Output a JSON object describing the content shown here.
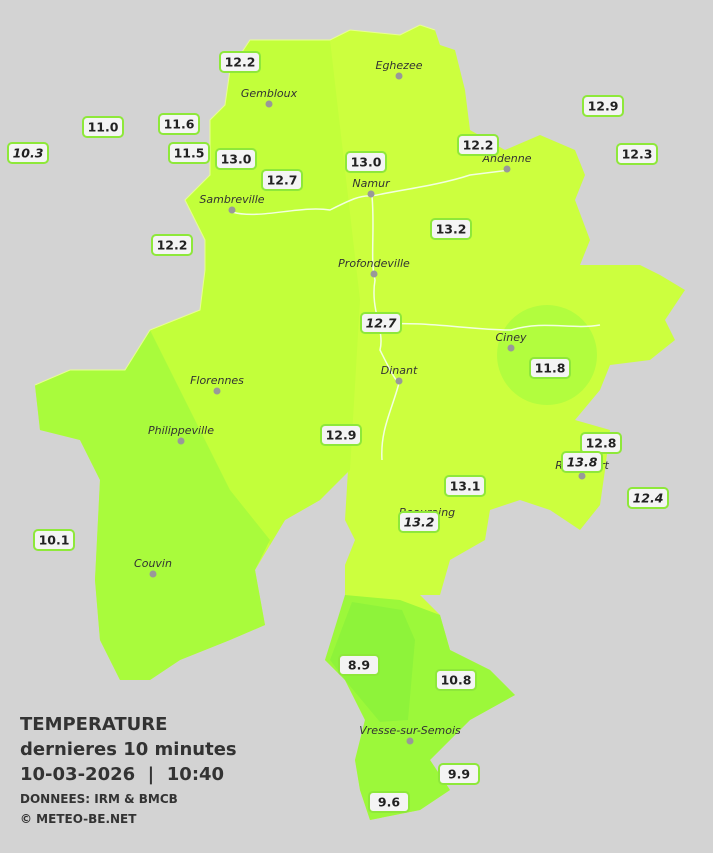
{
  "legend": {
    "title": "TEMPERATURE",
    "subtitle": "dernieres 10 minutes",
    "datetime": "10-03-2026  |  10:40",
    "source": "DONNEES: IRM & BMCB",
    "copyright": "© METEO-BE.NET"
  },
  "cities": [
    "Eghezee",
    "Gembloux",
    "Andenne",
    "Namur",
    "Sambreville",
    "Profondeville",
    "Ciney",
    "Florennes",
    "Dinant",
    "Philippeville",
    "Couvin",
    "Vresse-sur-Semois",
    "Rochefort",
    "Beauraing"
  ],
  "stations": [
    {
      "label": "12.2",
      "italic": false
    },
    {
      "label": "11.0",
      "italic": false
    },
    {
      "label": "10.3",
      "italic": true
    },
    {
      "label": "11.6",
      "italic": false
    },
    {
      "label": "11.5",
      "italic": false
    },
    {
      "label": "13.0",
      "italic": false
    },
    {
      "label": "12.7",
      "italic": false
    },
    {
      "label": "13.0",
      "italic": false
    },
    {
      "label": "12.2",
      "italic": false
    },
    {
      "label": "12.9",
      "italic": false
    },
    {
      "label": "12.3",
      "italic": false
    },
    {
      "label": "12.2",
      "italic": false
    },
    {
      "label": "13.2",
      "italic": false
    },
    {
      "label": "12.7",
      "italic": true
    },
    {
      "label": "11.8",
      "italic": false
    },
    {
      "label": "12.9",
      "italic": false
    },
    {
      "label": "12.8",
      "italic": false
    },
    {
      "label": "13.8",
      "italic": true
    },
    {
      "label": "12.4",
      "italic": true
    },
    {
      "label": "13.1",
      "italic": false
    },
    {
      "label": "13.2",
      "italic": true
    },
    {
      "label": "10.1",
      "italic": false
    },
    {
      "label": "8.9",
      "italic": false
    },
    {
      "label": "10.8",
      "italic": false
    },
    {
      "label": "9.9",
      "italic": false
    },
    {
      "label": "9.6",
      "italic": false
    }
  ]
}
